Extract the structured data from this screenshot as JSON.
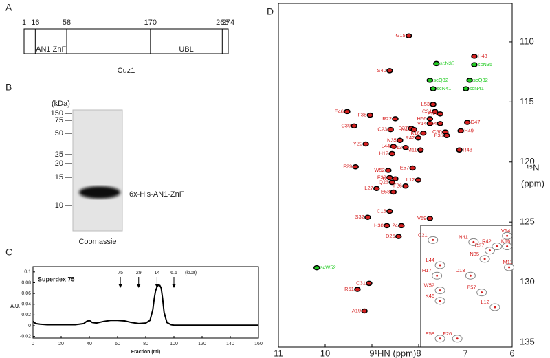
{
  "panel_a": {
    "label": "A",
    "positions": [
      1,
      16,
      58,
      170,
      266,
      274
    ],
    "segments": [
      null,
      "AN1 ZnF",
      null,
      "UBL",
      null
    ],
    "protein": "Cuz1"
  },
  "panel_b": {
    "label": "B",
    "unit": "(kDa)",
    "ladder": [
      150,
      75,
      50,
      25,
      20,
      15,
      10
    ],
    "band": "6x-His-AN1-ZnF",
    "stain": "Coomassie"
  },
  "chart_data": [
    {
      "panel": "C",
      "type": "line",
      "title": "Superdex 75",
      "xlabel": "Fraction (ml)",
      "ylabel": "A.U.",
      "color": "#000000",
      "x": [
        0,
        2,
        5,
        10,
        20,
        30,
        36,
        38,
        40,
        42,
        45,
        50,
        55,
        60,
        65,
        70,
        75,
        80,
        83,
        85,
        86,
        87,
        88,
        89,
        90,
        91,
        92,
        93,
        95,
        98,
        100,
        110,
        120,
        140,
        160
      ],
      "values": [
        0.008,
        0.004,
        0.003,
        0.002,
        0.002,
        0.002,
        0.004,
        0.008,
        0.01,
        0.006,
        0.005,
        0.008,
        0.01,
        0.01,
        0.009,
        0.006,
        0.004,
        0.005,
        0.01,
        0.03,
        0.05,
        0.065,
        0.072,
        0.076,
        0.075,
        0.07,
        0.05,
        0.025,
        0.006,
        0.002,
        0.001,
        0.001,
        0.001,
        0.001,
        0.001
      ],
      "xlim": [
        0,
        160
      ],
      "ylim": [
        -0.023,
        0.11
      ],
      "xticks": [
        0,
        20,
        40,
        60,
        80,
        100,
        120,
        140,
        160
      ],
      "yticks": [
        -0.02,
        0,
        0.02,
        0.04,
        0.06,
        0.08,
        0.1
      ],
      "annotations": {
        "x": [
          62,
          75,
          88,
          100
        ],
        "labels": [
          "75",
          "29",
          "14",
          "6.5"
        ],
        "unit": "(kDa)"
      }
    },
    {
      "panel": "D",
      "type": "scatter",
      "xlabel": "¹HN (ppm)",
      "ylabel": "¹⁵N",
      "yunit": "(ppm)",
      "xlim": [
        11,
        6
      ],
      "ylim": [
        106.8,
        135.4
      ],
      "xticks": [
        11,
        10,
        9,
        8,
        7,
        6
      ],
      "yticks": [
        110,
        115,
        120,
        125,
        130,
        135
      ],
      "series": [
        {
          "color": "#d62020",
          "labels": [
            "G15",
            "H48",
            "S40",
            "F38",
            "E46",
            "L53",
            "C34",
            "E55",
            "R22",
            "H56",
            "D47",
            "V14",
            "L54",
            "C39",
            "D37",
            "C23",
            "N41",
            "H49",
            "C50",
            "K16",
            "E36",
            "R42",
            "N35",
            "Y20",
            "L44",
            "D13",
            "M11",
            "R43",
            "H17",
            "F29",
            "E57",
            "W52",
            "F38",
            "K46",
            "L12",
            "Q23",
            "F26",
            "L27",
            "E58",
            "C18",
            "S32",
            "V59",
            "H30",
            "L24",
            "D25",
            "C31",
            "R51",
            "A19"
          ],
          "x": [
            8.21,
            6.81,
            8.62,
            9.04,
            9.53,
            7.69,
            7.65,
            7.54,
            8.5,
            7.76,
            6.96,
            7.76,
            7.54,
            9.38,
            8.16,
            8.6,
            8.1,
            7.1,
            7.43,
            7.9,
            7.4,
            8.01,
            8.4,
            9.13,
            8.54,
            8.28,
            7.96,
            7.13,
            8.57,
            9.35,
            8.13,
            8.65,
            8.62,
            8.5,
            8.01,
            8.57,
            8.28,
            8.9,
            8.54,
            8.62,
            9.09,
            7.76,
            8.68,
            8.37,
            8.43,
            9.06,
            9.31,
            9.16
          ],
          "values": [
            109.5,
            111.2,
            112.4,
            116.1,
            115.8,
            115.2,
            115.8,
            116.0,
            116.4,
            116.4,
            116.7,
            116.8,
            116.8,
            117.0,
            117.2,
            117.3,
            117.3,
            117.4,
            117.5,
            117.6,
            117.8,
            118.0,
            118.2,
            118.5,
            118.7,
            118.8,
            119.0,
            119.0,
            119.3,
            120.4,
            120.5,
            120.7,
            121.3,
            121.4,
            121.5,
            121.7,
            122.0,
            122.2,
            122.5,
            124.1,
            124.6,
            124.7,
            125.3,
            125.3,
            126.2,
            130.1,
            130.6,
            132.4
          ]
        },
        {
          "color": "#22cc22",
          "labels": [
            "scN35",
            "scN35",
            "scQ32",
            "scQ32",
            "scN41",
            "scN41",
            "scW52"
          ],
          "x": [
            7.62,
            6.81,
            7.76,
            6.91,
            7.69,
            6.99,
            10.18
          ],
          "values": [
            111.8,
            111.9,
            113.2,
            113.2,
            113.9,
            113.9,
            128.8
          ]
        }
      ],
      "inset": {
        "xlim": [
          8.75,
          7.85
        ],
        "ylim": [
          116.8,
          122.6
        ],
        "labels": [
          "C21",
          "N41",
          "V14",
          "D37",
          "R42",
          "K16",
          "N35",
          "M11",
          "L44",
          "H17",
          "D13",
          "W52",
          "K46",
          "E57",
          "L12",
          "E58",
          "F26"
        ],
        "x": [
          8.63,
          8.23,
          7.9,
          8.07,
          8.0,
          7.9,
          8.12,
          7.88,
          8.56,
          8.59,
          8.26,
          8.56,
          8.56,
          8.15,
          8.02,
          8.56,
          8.39
        ],
        "values": [
          117.5,
          117.6,
          117.3,
          118.0,
          117.8,
          117.8,
          118.4,
          118.8,
          118.7,
          119.2,
          119.2,
          119.9,
          120.4,
          120.0,
          120.7,
          122.2,
          122.2
        ]
      }
    }
  ]
}
